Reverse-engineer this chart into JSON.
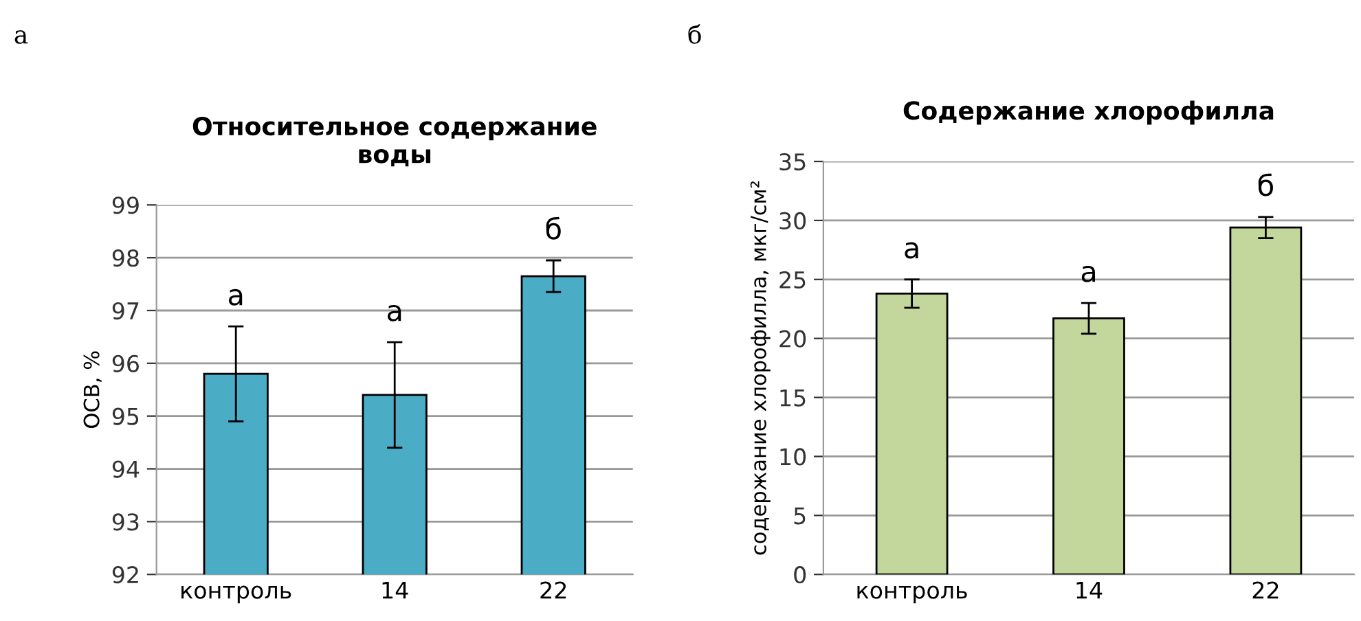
{
  "chart_data": [
    {
      "type": "bar",
      "title": "Относительное содержание\nводы",
      "ylabel": "ОСВ, %",
      "categories": [
        "контроль",
        "14",
        "22"
      ],
      "values": [
        95.8,
        95.4,
        97.65
      ],
      "errors": [
        0.9,
        1.0,
        0.3
      ],
      "color": "#4bacc6",
      "ylim": [
        92,
        99
      ],
      "yticks": [
        92,
        93,
        94,
        95,
        96,
        97,
        98,
        99
      ],
      "grid": "y",
      "annotations": [
        "а",
        "а",
        "а",
        "б"
      ]
    },
    {
      "type": "bar",
      "title": "Содержание хлорофилла",
      "ylabel": "содержание хлорофилла, мкг/см²",
      "categories": [
        "контроль",
        "14",
        "22"
      ],
      "values": [
        23.8,
        21.7,
        29.4
      ],
      "errors": [
        1.2,
        1.3,
        0.9
      ],
      "color": "#c3d69b",
      "ylim": [
        0,
        35
      ],
      "yticks": [
        0,
        5,
        10,
        15,
        20,
        25,
        30,
        35
      ],
      "grid": "y",
      "annotations": [
        "б",
        "а",
        "а",
        "б"
      ]
    }
  ]
}
